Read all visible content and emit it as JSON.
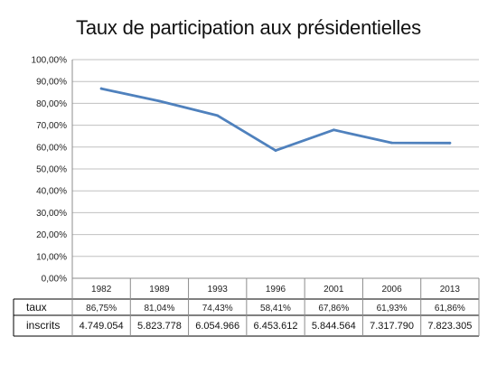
{
  "chart_data": {
    "type": "line",
    "title": "Taux de participation aux présidentielles",
    "categories": [
      "1982",
      "1989",
      "1993",
      "1996",
      "2001",
      "2006",
      "2013"
    ],
    "series": [
      {
        "values": [
          86.75,
          81.04,
          74.43,
          58.41,
          67.86,
          61.93,
          61.86
        ]
      }
    ],
    "ylim": [
      0,
      100
    ],
    "yticks": [
      "0,00%",
      "10,00%",
      "20,00%",
      "30,00%",
      "40,00%",
      "50,00%",
      "60,00%",
      "70,00%",
      "80,00%",
      "90,00%",
      "100,00%"
    ],
    "grid": true,
    "line_color": "#4f81bd",
    "grid_color": "#c0c0c0",
    "table": {
      "rows": [
        {
          "label": "taux",
          "cells": [
            "86,75%",
            "81,04%",
            "74,43%",
            "58,41%",
            "67,86%",
            "61,93%",
            "61,86%"
          ]
        },
        {
          "label": "inscrits",
          "cells": [
            "4.749.054",
            "5.823.778",
            "6.054.966",
            "6.453.612",
            "5.844.564",
            "7.317.790",
            "7.823.305"
          ]
        }
      ]
    }
  }
}
